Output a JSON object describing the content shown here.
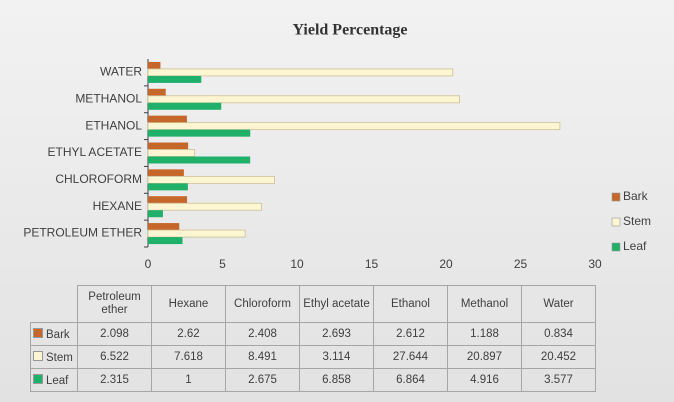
{
  "chart_data": {
    "type": "hbar",
    "title": "Yield Percentage",
    "categories": [
      "PETROLEUM ETHER",
      "HEXANE",
      "CHLOROFORM",
      "ETHYL ACETATE",
      "ETHANOL",
      "METHANOL",
      "WATER"
    ],
    "table_columns": [
      "Petroleum ether",
      "Hexane",
      "Chloroform",
      "Ethyl acetate",
      "Ethanol",
      "Methanol",
      "Water"
    ],
    "series": [
      {
        "name": "Bark",
        "color": "#c5662a",
        "values": [
          2.098,
          2.62,
          2.408,
          2.693,
          2.612,
          1.188,
          0.834
        ]
      },
      {
        "name": "Stem",
        "color": "#fdf6d2",
        "values": [
          6.522,
          7.618,
          8.491,
          3.114,
          27.644,
          20.897,
          20.452
        ]
      },
      {
        "name": "Leaf",
        "color": "#1fb06a",
        "values": [
          2.315,
          1,
          2.675,
          6.858,
          6.864,
          4.916,
          3.577
        ]
      }
    ],
    "xlim": [
      0,
      30
    ],
    "xticks": [
      0,
      5,
      10,
      15,
      20,
      25,
      30
    ],
    "legend": "right"
  }
}
